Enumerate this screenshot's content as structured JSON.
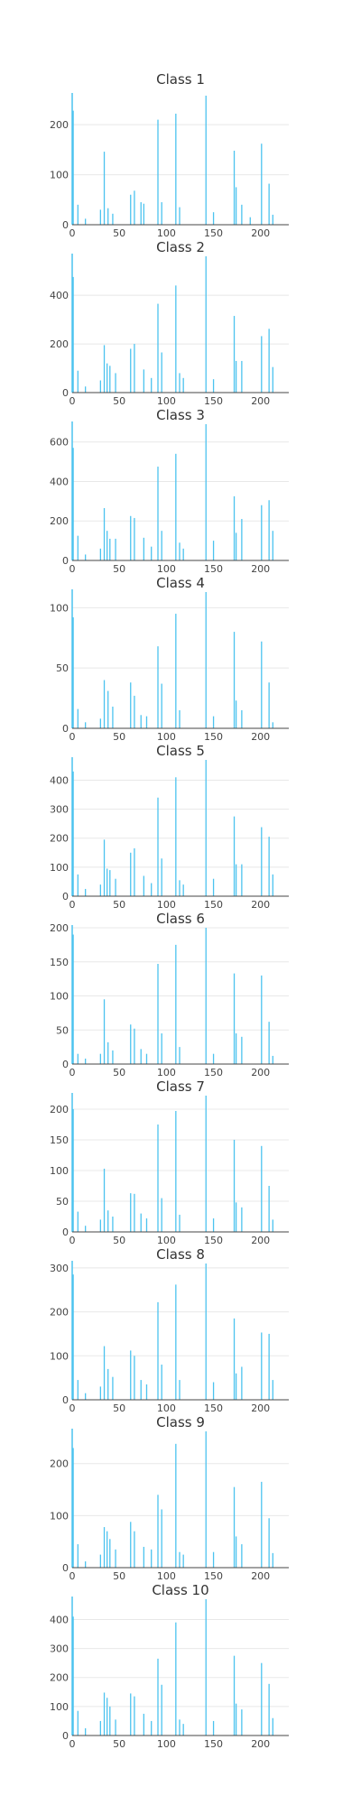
{
  "colors": {
    "bar": "#4cc3ef",
    "axis": "#444444",
    "grid": "#e8e8e8",
    "text": "#444444",
    "title": "#333333"
  },
  "chart_data": [
    {
      "type": "bar",
      "title": "Class 1",
      "xlim": [
        0,
        230
      ],
      "ylim": [
        0,
        258
      ],
      "xticks": [
        0,
        50,
        100,
        150,
        200
      ],
      "yticks": [
        0,
        100,
        200
      ],
      "bars": [
        {
          "x": 1,
          "y": 228
        },
        {
          "x": 6,
          "y": 40
        },
        {
          "x": 14,
          "y": 12
        },
        {
          "x": 30,
          "y": 30
        },
        {
          "x": 34,
          "y": 146
        },
        {
          "x": 38,
          "y": 33
        },
        {
          "x": 43,
          "y": 22
        },
        {
          "x": 62,
          "y": 60
        },
        {
          "x": 66,
          "y": 68
        },
        {
          "x": 73,
          "y": 45
        },
        {
          "x": 76,
          "y": 42
        },
        {
          "x": 91,
          "y": 210
        },
        {
          "x": 95,
          "y": 45
        },
        {
          "x": 110,
          "y": 222
        },
        {
          "x": 114,
          "y": 35
        },
        {
          "x": 142,
          "y": 258
        },
        {
          "x": 150,
          "y": 25
        },
        {
          "x": 172,
          "y": 148
        },
        {
          "x": 174,
          "y": 75
        },
        {
          "x": 180,
          "y": 40
        },
        {
          "x": 189,
          "y": 15
        },
        {
          "x": 201,
          "y": 162
        },
        {
          "x": 209,
          "y": 82
        },
        {
          "x": 213,
          "y": 20
        }
      ]
    },
    {
      "type": "bar",
      "title": "Class 2",
      "xlim": [
        0,
        230
      ],
      "ylim": [
        0,
        560
      ],
      "xticks": [
        0,
        50,
        100,
        150,
        200
      ],
      "yticks": [
        0,
        200,
        400
      ],
      "bars": [
        {
          "x": 1,
          "y": 475
        },
        {
          "x": 6,
          "y": 90
        },
        {
          "x": 14,
          "y": 25
        },
        {
          "x": 30,
          "y": 50
        },
        {
          "x": 34,
          "y": 195
        },
        {
          "x": 37,
          "y": 120
        },
        {
          "x": 40,
          "y": 110
        },
        {
          "x": 46,
          "y": 80
        },
        {
          "x": 62,
          "y": 180
        },
        {
          "x": 66,
          "y": 200
        },
        {
          "x": 76,
          "y": 95
        },
        {
          "x": 84,
          "y": 60
        },
        {
          "x": 91,
          "y": 365
        },
        {
          "x": 95,
          "y": 165
        },
        {
          "x": 110,
          "y": 440
        },
        {
          "x": 114,
          "y": 80
        },
        {
          "x": 118,
          "y": 60
        },
        {
          "x": 142,
          "y": 560
        },
        {
          "x": 150,
          "y": 55
        },
        {
          "x": 172,
          "y": 315
        },
        {
          "x": 174,
          "y": 130
        },
        {
          "x": 180,
          "y": 130
        },
        {
          "x": 201,
          "y": 232
        },
        {
          "x": 209,
          "y": 262
        },
        {
          "x": 213,
          "y": 105
        }
      ]
    },
    {
      "type": "bar",
      "title": "Class 3",
      "xlim": [
        0,
        230
      ],
      "ylim": [
        0,
        690
      ],
      "xticks": [
        0,
        50,
        100,
        150,
        200
      ],
      "yticks": [
        0,
        200,
        400,
        600
      ],
      "bars": [
        {
          "x": 1,
          "y": 570
        },
        {
          "x": 6,
          "y": 125
        },
        {
          "x": 14,
          "y": 30
        },
        {
          "x": 30,
          "y": 60
        },
        {
          "x": 34,
          "y": 265
        },
        {
          "x": 37,
          "y": 150
        },
        {
          "x": 40,
          "y": 110
        },
        {
          "x": 46,
          "y": 110
        },
        {
          "x": 62,
          "y": 225
        },
        {
          "x": 66,
          "y": 215
        },
        {
          "x": 76,
          "y": 115
        },
        {
          "x": 84,
          "y": 70
        },
        {
          "x": 91,
          "y": 475
        },
        {
          "x": 95,
          "y": 150
        },
        {
          "x": 110,
          "y": 540
        },
        {
          "x": 114,
          "y": 90
        },
        {
          "x": 118,
          "y": 60
        },
        {
          "x": 142,
          "y": 690
        },
        {
          "x": 150,
          "y": 100
        },
        {
          "x": 172,
          "y": 325
        },
        {
          "x": 174,
          "y": 140
        },
        {
          "x": 180,
          "y": 210
        },
        {
          "x": 201,
          "y": 280
        },
        {
          "x": 209,
          "y": 305
        },
        {
          "x": 213,
          "y": 150
        }
      ]
    },
    {
      "type": "bar",
      "title": "Class 4",
      "xlim": [
        0,
        230
      ],
      "ylim": [
        0,
        113
      ],
      "xticks": [
        0,
        50,
        100,
        150,
        200
      ],
      "yticks": [
        0,
        50,
        100
      ],
      "bars": [
        {
          "x": 1,
          "y": 92
        },
        {
          "x": 6,
          "y": 16
        },
        {
          "x": 14,
          "y": 5
        },
        {
          "x": 30,
          "y": 8
        },
        {
          "x": 34,
          "y": 40
        },
        {
          "x": 38,
          "y": 31
        },
        {
          "x": 43,
          "y": 18
        },
        {
          "x": 62,
          "y": 38
        },
        {
          "x": 66,
          "y": 27
        },
        {
          "x": 73,
          "y": 11
        },
        {
          "x": 79,
          "y": 10
        },
        {
          "x": 91,
          "y": 68
        },
        {
          "x": 95,
          "y": 37
        },
        {
          "x": 110,
          "y": 95
        },
        {
          "x": 114,
          "y": 15
        },
        {
          "x": 142,
          "y": 113
        },
        {
          "x": 150,
          "y": 10
        },
        {
          "x": 172,
          "y": 80
        },
        {
          "x": 174,
          "y": 23
        },
        {
          "x": 180,
          "y": 15
        },
        {
          "x": 201,
          "y": 72
        },
        {
          "x": 209,
          "y": 38
        },
        {
          "x": 213,
          "y": 5
        }
      ]
    },
    {
      "type": "bar",
      "title": "Class 5",
      "xlim": [
        0,
        230
      ],
      "ylim": [
        0,
        470
      ],
      "xticks": [
        0,
        50,
        100,
        150,
        200
      ],
      "yticks": [
        0,
        100,
        200,
        300,
        400
      ],
      "bars": [
        {
          "x": 1,
          "y": 430
        },
        {
          "x": 6,
          "y": 75
        },
        {
          "x": 14,
          "y": 25
        },
        {
          "x": 30,
          "y": 40
        },
        {
          "x": 34,
          "y": 195
        },
        {
          "x": 37,
          "y": 95
        },
        {
          "x": 40,
          "y": 90
        },
        {
          "x": 46,
          "y": 60
        },
        {
          "x": 62,
          "y": 150
        },
        {
          "x": 66,
          "y": 165
        },
        {
          "x": 76,
          "y": 70
        },
        {
          "x": 84,
          "y": 45
        },
        {
          "x": 91,
          "y": 340
        },
        {
          "x": 95,
          "y": 130
        },
        {
          "x": 110,
          "y": 410
        },
        {
          "x": 114,
          "y": 55
        },
        {
          "x": 118,
          "y": 40
        },
        {
          "x": 142,
          "y": 470
        },
        {
          "x": 150,
          "y": 60
        },
        {
          "x": 172,
          "y": 275
        },
        {
          "x": 174,
          "y": 110
        },
        {
          "x": 180,
          "y": 110
        },
        {
          "x": 201,
          "y": 238
        },
        {
          "x": 209,
          "y": 205
        },
        {
          "x": 213,
          "y": 75
        }
      ]
    },
    {
      "type": "bar",
      "title": "Class 6",
      "xlim": [
        0,
        230
      ],
      "ylim": [
        0,
        200
      ],
      "xticks": [
        0,
        50,
        100,
        150,
        200
      ],
      "yticks": [
        0,
        50,
        100,
        150,
        200
      ],
      "bars": [
        {
          "x": 1,
          "y": 190
        },
        {
          "x": 6,
          "y": 15
        },
        {
          "x": 14,
          "y": 8
        },
        {
          "x": 30,
          "y": 15
        },
        {
          "x": 34,
          "y": 95
        },
        {
          "x": 38,
          "y": 32
        },
        {
          "x": 43,
          "y": 20
        },
        {
          "x": 62,
          "y": 58
        },
        {
          "x": 66,
          "y": 52
        },
        {
          "x": 73,
          "y": 22
        },
        {
          "x": 79,
          "y": 15
        },
        {
          "x": 91,
          "y": 147
        },
        {
          "x": 95,
          "y": 45
        },
        {
          "x": 110,
          "y": 175
        },
        {
          "x": 114,
          "y": 25
        },
        {
          "x": 142,
          "y": 200
        },
        {
          "x": 150,
          "y": 15
        },
        {
          "x": 172,
          "y": 133
        },
        {
          "x": 174,
          "y": 45
        },
        {
          "x": 180,
          "y": 40
        },
        {
          "x": 201,
          "y": 130
        },
        {
          "x": 209,
          "y": 62
        },
        {
          "x": 213,
          "y": 12
        }
      ]
    },
    {
      "type": "bar",
      "title": "Class 7",
      "xlim": [
        0,
        230
      ],
      "ylim": [
        0,
        222
      ],
      "xticks": [
        0,
        50,
        100,
        150,
        200
      ],
      "yticks": [
        0,
        50,
        100,
        150,
        200
      ],
      "bars": [
        {
          "x": 1,
          "y": 200
        },
        {
          "x": 6,
          "y": 33
        },
        {
          "x": 14,
          "y": 10
        },
        {
          "x": 30,
          "y": 20
        },
        {
          "x": 34,
          "y": 103
        },
        {
          "x": 38,
          "y": 35
        },
        {
          "x": 43,
          "y": 25
        },
        {
          "x": 62,
          "y": 63
        },
        {
          "x": 66,
          "y": 62
        },
        {
          "x": 73,
          "y": 30
        },
        {
          "x": 79,
          "y": 22
        },
        {
          "x": 91,
          "y": 175
        },
        {
          "x": 95,
          "y": 55
        },
        {
          "x": 110,
          "y": 197
        },
        {
          "x": 114,
          "y": 28
        },
        {
          "x": 142,
          "y": 222
        },
        {
          "x": 150,
          "y": 22
        },
        {
          "x": 172,
          "y": 150
        },
        {
          "x": 174,
          "y": 48
        },
        {
          "x": 180,
          "y": 40
        },
        {
          "x": 201,
          "y": 140
        },
        {
          "x": 209,
          "y": 75
        },
        {
          "x": 213,
          "y": 20
        }
      ]
    },
    {
      "type": "bar",
      "title": "Class 8",
      "xlim": [
        0,
        230
      ],
      "ylim": [
        0,
        310
      ],
      "xticks": [
        0,
        50,
        100,
        150,
        200
      ],
      "yticks": [
        0,
        100,
        200,
        300
      ],
      "bars": [
        {
          "x": 1,
          "y": 285
        },
        {
          "x": 6,
          "y": 45
        },
        {
          "x": 14,
          "y": 15
        },
        {
          "x": 30,
          "y": 30
        },
        {
          "x": 34,
          "y": 122
        },
        {
          "x": 38,
          "y": 70
        },
        {
          "x": 43,
          "y": 52
        },
        {
          "x": 62,
          "y": 112
        },
        {
          "x": 66,
          "y": 100
        },
        {
          "x": 73,
          "y": 45
        },
        {
          "x": 79,
          "y": 35
        },
        {
          "x": 91,
          "y": 222
        },
        {
          "x": 95,
          "y": 80
        },
        {
          "x": 110,
          "y": 262
        },
        {
          "x": 114,
          "y": 45
        },
        {
          "x": 142,
          "y": 310
        },
        {
          "x": 150,
          "y": 40
        },
        {
          "x": 172,
          "y": 185
        },
        {
          "x": 174,
          "y": 60
        },
        {
          "x": 180,
          "y": 75
        },
        {
          "x": 201,
          "y": 153
        },
        {
          "x": 209,
          "y": 150
        },
        {
          "x": 213,
          "y": 45
        }
      ]
    },
    {
      "type": "bar",
      "title": "Class 9",
      "xlim": [
        0,
        230
      ],
      "ylim": [
        0,
        262
      ],
      "xticks": [
        0,
        50,
        100,
        150,
        200
      ],
      "yticks": [
        0,
        100,
        200
      ],
      "bars": [
        {
          "x": 1,
          "y": 230
        },
        {
          "x": 6,
          "y": 45
        },
        {
          "x": 14,
          "y": 12
        },
        {
          "x": 30,
          "y": 25
        },
        {
          "x": 34,
          "y": 78
        },
        {
          "x": 37,
          "y": 70
        },
        {
          "x": 40,
          "y": 55
        },
        {
          "x": 46,
          "y": 35
        },
        {
          "x": 62,
          "y": 88
        },
        {
          "x": 66,
          "y": 70
        },
        {
          "x": 76,
          "y": 40
        },
        {
          "x": 84,
          "y": 35
        },
        {
          "x": 91,
          "y": 140
        },
        {
          "x": 95,
          "y": 112
        },
        {
          "x": 110,
          "y": 238
        },
        {
          "x": 114,
          "y": 30
        },
        {
          "x": 118,
          "y": 25
        },
        {
          "x": 142,
          "y": 262
        },
        {
          "x": 150,
          "y": 30
        },
        {
          "x": 172,
          "y": 155
        },
        {
          "x": 174,
          "y": 60
        },
        {
          "x": 180,
          "y": 45
        },
        {
          "x": 201,
          "y": 165
        },
        {
          "x": 209,
          "y": 95
        },
        {
          "x": 213,
          "y": 28
        }
      ]
    },
    {
      "type": "bar",
      "title": "Class 10",
      "xlim": [
        0,
        230
      ],
      "ylim": [
        0,
        470
      ],
      "xticks": [
        0,
        50,
        100,
        150,
        200
      ],
      "yticks": [
        0,
        100,
        200,
        300,
        400
      ],
      "bars": [
        {
          "x": 1,
          "y": 410
        },
        {
          "x": 6,
          "y": 85
        },
        {
          "x": 14,
          "y": 25
        },
        {
          "x": 30,
          "y": 50
        },
        {
          "x": 34,
          "y": 148
        },
        {
          "x": 37,
          "y": 130
        },
        {
          "x": 40,
          "y": 100
        },
        {
          "x": 46,
          "y": 55
        },
        {
          "x": 62,
          "y": 145
        },
        {
          "x": 66,
          "y": 135
        },
        {
          "x": 76,
          "y": 75
        },
        {
          "x": 84,
          "y": 50
        },
        {
          "x": 91,
          "y": 265
        },
        {
          "x": 95,
          "y": 175
        },
        {
          "x": 110,
          "y": 390
        },
        {
          "x": 114,
          "y": 55
        },
        {
          "x": 118,
          "y": 40
        },
        {
          "x": 142,
          "y": 470
        },
        {
          "x": 150,
          "y": 50
        },
        {
          "x": 172,
          "y": 275
        },
        {
          "x": 174,
          "y": 110
        },
        {
          "x": 180,
          "y": 90
        },
        {
          "x": 201,
          "y": 250
        },
        {
          "x": 209,
          "y": 178
        },
        {
          "x": 213,
          "y": 60
        }
      ]
    }
  ]
}
